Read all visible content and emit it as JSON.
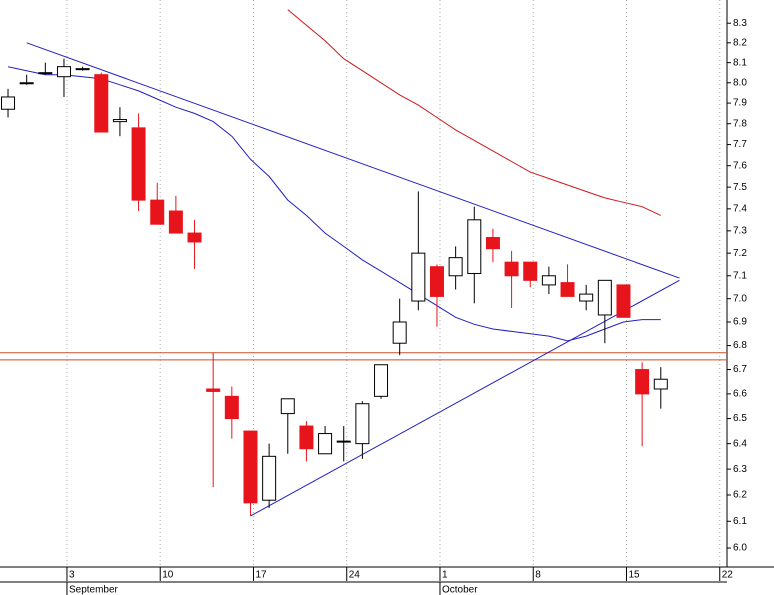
{
  "chart_data": {
    "type": "candlestick",
    "categories": [
      null,
      null,
      null,
      "3",
      null,
      null,
      null,
      null,
      "10",
      null,
      null,
      null,
      null,
      "17",
      null,
      null,
      null,
      null,
      "24",
      null,
      null,
      null,
      null,
      "1",
      null,
      null,
      null,
      null,
      "8",
      null,
      null,
      null,
      null,
      "15",
      null,
      null,
      null,
      null,
      "22"
    ],
    "months": [
      {
        "label": "September",
        "at": 3
      },
      {
        "label": "October",
        "at": 23
      }
    ],
    "open": [
      7.87,
      8.0,
      8.05,
      8.03,
      8.07,
      8.04,
      7.81,
      7.78,
      7.44,
      7.39,
      7.29,
      6.62,
      6.59,
      6.45,
      6.18,
      6.52,
      6.47,
      6.36,
      6.41,
      6.4,
      6.59,
      6.81,
      6.99,
      7.14,
      7.1,
      7.11,
      7.27,
      7.16,
      7.16,
      7.06,
      7.07,
      6.99,
      6.93,
      7.06,
      6.7,
      6.62,
      null,
      null,
      null
    ],
    "high": [
      7.97,
      8.04,
      8.1,
      8.12,
      8.08,
      8.05,
      7.88,
      7.85,
      7.52,
      7.46,
      7.35,
      6.77,
      6.63,
      6.45,
      6.4,
      6.58,
      6.49,
      6.47,
      6.47,
      6.57,
      6.72,
      7.0,
      7.48,
      7.15,
      7.23,
      7.41,
      7.31,
      7.21,
      7.16,
      7.14,
      7.15,
      7.06,
      7.08,
      7.06,
      6.73,
      6.71,
      null,
      null,
      null
    ],
    "low": [
      7.83,
      7.99,
      8.04,
      7.93,
      8.06,
      7.76,
      7.74,
      7.39,
      7.33,
      7.29,
      7.13,
      6.23,
      6.42,
      6.12,
      6.15,
      6.36,
      6.33,
      6.36,
      6.33,
      6.34,
      6.58,
      6.76,
      6.95,
      6.88,
      7.04,
      6.98,
      7.16,
      6.96,
      7.05,
      7.02,
      7.01,
      6.95,
      6.81,
      6.92,
      6.39,
      6.54,
      null,
      null,
      null
    ],
    "close": [
      7.93,
      8.0,
      8.05,
      8.08,
      8.07,
      7.76,
      7.82,
      7.44,
      7.33,
      7.29,
      7.25,
      6.61,
      6.5,
      6.17,
      6.35,
      6.58,
      6.38,
      6.44,
      6.41,
      6.56,
      6.72,
      6.9,
      7.2,
      7.01,
      7.18,
      7.35,
      7.22,
      7.1,
      7.08,
      7.1,
      7.01,
      7.02,
      7.08,
      6.92,
      6.6,
      6.66,
      null,
      null,
      null
    ],
    "up_color": "#ffffff",
    "down_color": "#e8141c",
    "lines": [
      {
        "color": "#d01818",
        "values": [
          null,
          null,
          null,
          null,
          null,
          null,
          null,
          null,
          null,
          null,
          null,
          null,
          null,
          null,
          null,
          8.37,
          8.29,
          8.21,
          8.12,
          8.06,
          8.0,
          7.94,
          7.89,
          7.83,
          7.77,
          7.72,
          7.67,
          7.62,
          7.57,
          7.54,
          7.51,
          7.48,
          7.45,
          7.43,
          7.41,
          7.37,
          null,
          null,
          null
        ]
      },
      {
        "color": "#2020c0",
        "values": [
          8.08,
          8.06,
          8.04,
          8.04,
          8.03,
          8.02,
          7.99,
          7.96,
          7.92,
          7.88,
          7.85,
          7.81,
          7.74,
          7.63,
          7.55,
          7.44,
          7.37,
          7.29,
          7.23,
          7.17,
          7.12,
          7.07,
          7.02,
          6.97,
          6.92,
          6.89,
          6.87,
          6.86,
          6.85,
          6.84,
          6.82,
          6.84,
          6.87,
          6.9,
          6.91,
          6.91,
          null,
          null,
          null
        ]
      }
    ],
    "trendlines": [
      {
        "color": "#2020c0",
        "x": [
          1,
          36
        ],
        "values": [
          8.2,
          7.09
        ]
      },
      {
        "color": "#2020c0",
        "x": [
          13,
          36
        ],
        "values": [
          6.12,
          7.08
        ]
      }
    ],
    "hlines": [
      {
        "color": "#c8502a",
        "value": 6.77
      },
      {
        "color": "#c8502a",
        "value": 6.74
      }
    ],
    "xlim": [
      -0.43,
      38.55
    ],
    "ylim": [
      5.93,
      8.42
    ],
    "log_y": true,
    "grid": true,
    "yticks": [
      {
        "value": 6,
        "label": "6.0"
      },
      6.1,
      6.2,
      6.3,
      6.4,
      6.5,
      6.6,
      6.7,
      6.8,
      6.9,
      {
        "value": 7,
        "label": "7.0"
      },
      7.1,
      7.2,
      7.3,
      7.4,
      7.5,
      7.6,
      7.7,
      7.8,
      7.9,
      {
        "value": 8,
        "label": "8.0"
      },
      8.1,
      8.2,
      8.3
    ]
  }
}
